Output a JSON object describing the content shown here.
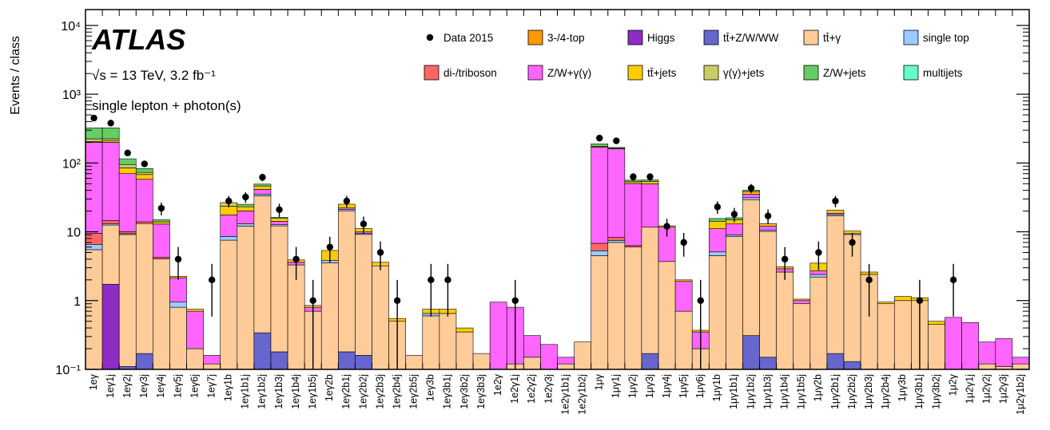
{
  "chart_data": {
    "type": "bar",
    "stacked": true,
    "log_scale": true,
    "title": "ATLAS",
    "subtitle": "√s = 13 TeV, 3.2 fb⁻¹",
    "annotation": "single lepton + photon(s)",
    "y_label": "Events / class",
    "ylim": [
      0.1,
      17000
    ],
    "yticks": [
      {
        "value": 0.1,
        "label": "10⁻¹"
      },
      1,
      10,
      {
        "value": 100,
        "label": "10²"
      },
      {
        "value": 1000,
        "label": "10³"
      },
      {
        "value": 10000,
        "label": "10⁴"
      }
    ],
    "categories": [
      "1eγ",
      "1eγ1j",
      "1eγ2j",
      "1eγ3j",
      "1eγ4j",
      "1eγ5j",
      "1eγ6j",
      "1eγ7j",
      "1eγ1b",
      "1eγ1b1j",
      "1eγ1b2j",
      "1eγ1b3j",
      "1eγ1b4j",
      "1eγ1b5j",
      "1eγ2b",
      "1eγ2b1j",
      "1eγ2b2j",
      "1eγ2b3j",
      "1eγ2b4j",
      "1eγ2b5j",
      "1eγ3b",
      "1eγ3b1j",
      "1eγ3b2j",
      "1eγ3b3j",
      "1e2γ",
      "1e2γ1j",
      "1e2γ2j",
      "1e2γ3j",
      "1e2γ1b1j",
      "1e2γ1b2j",
      "1μγ",
      "1μγ1j",
      "1μγ2j",
      "1μγ3j",
      "1μγ4j",
      "1μγ5j",
      "1μγ6j",
      "1μγ1b",
      "1μγ1b1j",
      "1μγ1b2j",
      "1μγ1b3j",
      "1μγ1b4j",
      "1μγ1b5j",
      "1μγ2b",
      "1μγ2b1j",
      "1μγ2b2j",
      "1μγ2b3j",
      "1μγ2b4j",
      "1μγ3b",
      "1μγ3b1j",
      "1μγ3b2j",
      "1μ2γ",
      "1μ2γ1j",
      "1μ2γ2j",
      "1μ2γ3j",
      "1μ2γ1b2j"
    ],
    "data": {
      "name": "Data 2015",
      "color": "#000000",
      "values": [
        450,
        380,
        140,
        97,
        22,
        4,
        0,
        2,
        28,
        32,
        62,
        21,
        4,
        1,
        6,
        28,
        13,
        5,
        1,
        0,
        2,
        2,
        0,
        0,
        0,
        1,
        0,
        0,
        0,
        0,
        230,
        210,
        63,
        63,
        12,
        7,
        1,
        23,
        18,
        43,
        17,
        4,
        0,
        5,
        28,
        7,
        2,
        0,
        0,
        1,
        0,
        2,
        0,
        0,
        0,
        0
      ]
    },
    "series": [
      {
        "name": "3-/4-top",
        "color": "#ff9900",
        "values": [
          0,
          0,
          0,
          0,
          0,
          0,
          0,
          0,
          0,
          0,
          0,
          0,
          0,
          0,
          0,
          0,
          0,
          0,
          0,
          0,
          0,
          0,
          0,
          0,
          0,
          0,
          0,
          0,
          0,
          0,
          0,
          0,
          0,
          0,
          0,
          0,
          0,
          0,
          0,
          0,
          0,
          0,
          0,
          0,
          0,
          0,
          0,
          0,
          0,
          0,
          0,
          0,
          0,
          0,
          0,
          0
        ]
      },
      {
        "name": "Higgs",
        "color": "#8e2dc5",
        "values": [
          0,
          1.7,
          0,
          0,
          0,
          0,
          0,
          0,
          0,
          0,
          0,
          0,
          0,
          0,
          0,
          0,
          0,
          0,
          0,
          0,
          0,
          0,
          0,
          0,
          0,
          0,
          0,
          0,
          0,
          0,
          0,
          0,
          0,
          0,
          0,
          0,
          0,
          0,
          0,
          0,
          0,
          0,
          0,
          0,
          0,
          0,
          0,
          0,
          0,
          0,
          0,
          0,
          0,
          0,
          0,
          0
        ]
      },
      {
        "name": "tt̄+Z/W/WW",
        "color": "#6666cc",
        "values": [
          0,
          0.03,
          0.11,
          0.17,
          0.05,
          0,
          0,
          0,
          0.05,
          0.1,
          0.34,
          0.18,
          0,
          0,
          0.05,
          0.18,
          0.16,
          0,
          0,
          0,
          0,
          0,
          0,
          0,
          0,
          0,
          0,
          0,
          0,
          0,
          0,
          0,
          0,
          0.17,
          0,
          0,
          0,
          0,
          0,
          0.31,
          0.15,
          0,
          0,
          0,
          0.17,
          0.13,
          0,
          0,
          0,
          0,
          0,
          0,
          0,
          0,
          0,
          0
        ]
      },
      {
        "name": "tt̄+γ",
        "color": "#ffcc99",
        "values": [
          5.5,
          10.8,
          9,
          13,
          4,
          0.8,
          0.2,
          0.12,
          7.5,
          12,
          33,
          12,
          3.3,
          0.7,
          3.5,
          20,
          9,
          3.2,
          0.5,
          0.16,
          0.6,
          0.65,
          0.35,
          0.17,
          0.1,
          0.12,
          0.15,
          0.1,
          0.12,
          0.25,
          4.5,
          7,
          6,
          11.5,
          3.7,
          0.7,
          0.2,
          4.5,
          8.5,
          29,
          10,
          2.6,
          0.9,
          2.2,
          17,
          9,
          2.4,
          0.9,
          1.0,
          1.0,
          0.45,
          0.1,
          0.1,
          0.12,
          0.11,
          0.12
        ]
      },
      {
        "name": "single top",
        "color": "#99ccff",
        "values": [
          1,
          0.5,
          0.3,
          0,
          0,
          0.15,
          0,
          0,
          1,
          1,
          2,
          0.5,
          0,
          0,
          0.3,
          1,
          0.3,
          0,
          0,
          0,
          0.05,
          0,
          0,
          0,
          0,
          0,
          0,
          0,
          0,
          0,
          0.8,
          0.5,
          0,
          0,
          0,
          0,
          0,
          0.6,
          0.5,
          2,
          0.5,
          0,
          0,
          0.2,
          0.7,
          0.3,
          0,
          0,
          0,
          0,
          0,
          0,
          0,
          0,
          0,
          0
        ]
      },
      {
        "name": "di-/triboson",
        "color": "#ff6666",
        "values": [
          3,
          1.5,
          0.6,
          0.8,
          0.2,
          0,
          0,
          0,
          0,
          0,
          0,
          0,
          0,
          0,
          0,
          0,
          0,
          0,
          0,
          0,
          0,
          0,
          0,
          0,
          0,
          0,
          0,
          0,
          0,
          0,
          1.5,
          0.8,
          0.3,
          0,
          0,
          0,
          0,
          0,
          0,
          0,
          0,
          0,
          0,
          0,
          0,
          0,
          0,
          0,
          0,
          0,
          0,
          0,
          0,
          0,
          0,
          0
        ]
      },
      {
        "name": "Z/W+γ(γ)",
        "color": "#ff66ff",
        "values": [
          190,
          185,
          60,
          44,
          8.7,
          1.2,
          0.5,
          0.04,
          9,
          7,
          6,
          1.5,
          0.3,
          0.1,
          0,
          1,
          0.5,
          0,
          0,
          0,
          0,
          0,
          0,
          0,
          0.85,
          0.68,
          0.16,
          0.13,
          0.03,
          0,
          163,
          152,
          44,
          38,
          8,
          1.2,
          0.15,
          6,
          4,
          4,
          1.5,
          0.3,
          0.1,
          0.3,
          0.8,
          0,
          0,
          0,
          0,
          0,
          0,
          0.47,
          0.38,
          0.13,
          0.17,
          0.03
        ]
      },
      {
        "name": "tt̄+jets",
        "color": "#ffcc00",
        "values": [
          5,
          10,
          15,
          10,
          1,
          0.1,
          0.05,
          0,
          6,
          3,
          5,
          1.5,
          0.3,
          0.05,
          1.5,
          3,
          1.2,
          0.4,
          0.05,
          0,
          0.1,
          0.1,
          0.05,
          0,
          0,
          0,
          0,
          0,
          0,
          0,
          5,
          3,
          3,
          4,
          0.5,
          0.1,
          0.02,
          3,
          2,
          3,
          1,
          0.2,
          0.05,
          0.8,
          2,
          0.8,
          0.2,
          0.05,
          0.15,
          0.1,
          0.05,
          0,
          0,
          0,
          0,
          0
        ]
      },
      {
        "name": "γ(γ)+jets",
        "color": "#cccc66",
        "values": [
          20,
          15,
          10,
          5,
          0,
          0,
          0,
          0,
          3,
          0,
          0,
          0,
          0,
          0,
          0,
          0,
          0,
          0,
          0,
          0,
          0,
          0,
          0,
          0,
          0,
          0,
          0,
          0,
          0,
          0,
          0,
          0,
          0,
          0,
          0,
          0,
          0,
          0,
          0,
          0,
          0,
          0,
          0,
          0,
          0,
          0,
          0,
          0,
          0,
          0,
          0,
          0,
          0,
          0,
          0,
          0
        ]
      },
      {
        "name": "Z/W+jets",
        "color": "#66cc66",
        "values": [
          100,
          100,
          20,
          10,
          1,
          0,
          0,
          0,
          0,
          2,
          3,
          0.5,
          0,
          0,
          0,
          0,
          0,
          0,
          0,
          0,
          0,
          0,
          0,
          0,
          0,
          0,
          0,
          0,
          0,
          0,
          15,
          5,
          3,
          3,
          0,
          0,
          0,
          1.5,
          1,
          2,
          0,
          0,
          0,
          0,
          0,
          0,
          0,
          0,
          0,
          0,
          0,
          0,
          0,
          0,
          0,
          0
        ]
      },
      {
        "name": "multijets",
        "color": "#66ffcc",
        "values": [
          0,
          0,
          0,
          0,
          0,
          0,
          0,
          0,
          0,
          0,
          0,
          0,
          0,
          0,
          0,
          0,
          0,
          0,
          0,
          0,
          0,
          0,
          0,
          0,
          0,
          0,
          0,
          0,
          0,
          0,
          0,
          0,
          0,
          0,
          0,
          0,
          0,
          0,
          0,
          0,
          0,
          0,
          0,
          0,
          0,
          0,
          0,
          0,
          0,
          0,
          0,
          0,
          0,
          0,
          0,
          0
        ]
      }
    ]
  }
}
